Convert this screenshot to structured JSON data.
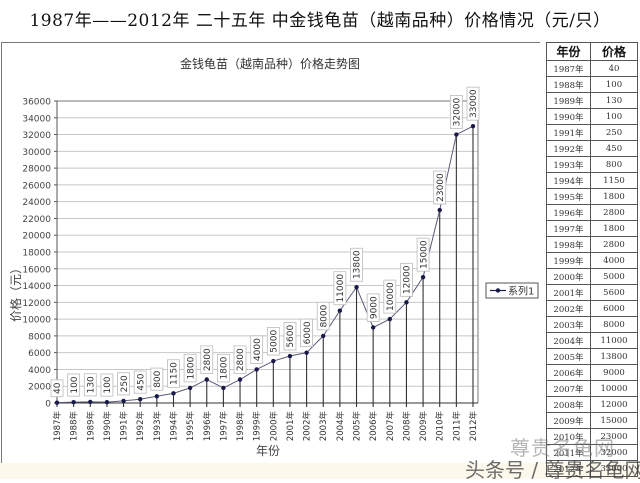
{
  "page_title": "1987年——2012年 二十五年 中金钱龟苗（越南品种）价格情况（元/只）",
  "table": {
    "headers": [
      "年份",
      "价格"
    ],
    "rows": [
      [
        "1987年",
        "40"
      ],
      [
        "1988年",
        "100"
      ],
      [
        "1989年",
        "130"
      ],
      [
        "1990年",
        "100"
      ],
      [
        "1991年",
        "250"
      ],
      [
        "1992年",
        "450"
      ],
      [
        "1993年",
        "800"
      ],
      [
        "1994年",
        "1150"
      ],
      [
        "1995年",
        "1800"
      ],
      [
        "1996年",
        "2800"
      ],
      [
        "1997年",
        "1800"
      ],
      [
        "1998年",
        "2800"
      ],
      [
        "1999年",
        "4000"
      ],
      [
        "2000年",
        "5000"
      ],
      [
        "2001年",
        "5600"
      ],
      [
        "2002年",
        "6000"
      ],
      [
        "2003年",
        "8000"
      ],
      [
        "2004年",
        "11000"
      ],
      [
        "2005年",
        "13800"
      ],
      [
        "2006年",
        "9000"
      ],
      [
        "2007年",
        "10000"
      ],
      [
        "2008年",
        "12000"
      ],
      [
        "2009年",
        "15000"
      ],
      [
        "2010年",
        "23000"
      ],
      [
        "2011年",
        "32000"
      ],
      [
        "2012年",
        "33000"
      ]
    ]
  },
  "watermark": {
    "line1": "尊贵名龟网",
    "line2": "头条号 / 尊贵名龟网"
  },
  "colors": {
    "series": "#1a1a4a",
    "grid": "#c8c8c8",
    "axis": "#555555"
  },
  "chart_data": {
    "type": "line",
    "title": "金钱龟苗（越南品种）价格走势图",
    "xlabel": "年份",
    "ylabel": "价格（元）",
    "categories": [
      "1987年",
      "1988年",
      "1989年",
      "1990年",
      "1991年",
      "1992年",
      "1993年",
      "1994年",
      "1995年",
      "1996年",
      "1997年",
      "1998年",
      "1999年",
      "2000年",
      "2001年",
      "2002年",
      "2003年",
      "2004年",
      "2005年",
      "2006年",
      "2007年",
      "2008年",
      "2009年",
      "2010年",
      "2011年",
      "2012年"
    ],
    "series": [
      {
        "name": "系列1",
        "values": [
          40,
          100,
          130,
          100,
          250,
          450,
          800,
          1150,
          1800,
          2800,
          1800,
          2800,
          4000,
          5000,
          5600,
          6000,
          8000,
          11000,
          13800,
          9000,
          10000,
          12000,
          15000,
          23000,
          32000,
          33000
        ]
      }
    ],
    "ylim": [
      0,
      36000
    ],
    "yticks": [
      0,
      2000,
      4000,
      6000,
      8000,
      10000,
      12000,
      14000,
      16000,
      18000,
      20000,
      22000,
      24000,
      26000,
      28000,
      30000,
      32000,
      34000,
      36000
    ],
    "grid": true,
    "legend_position": "right",
    "data_labels": true,
    "drop_lines": true
  }
}
